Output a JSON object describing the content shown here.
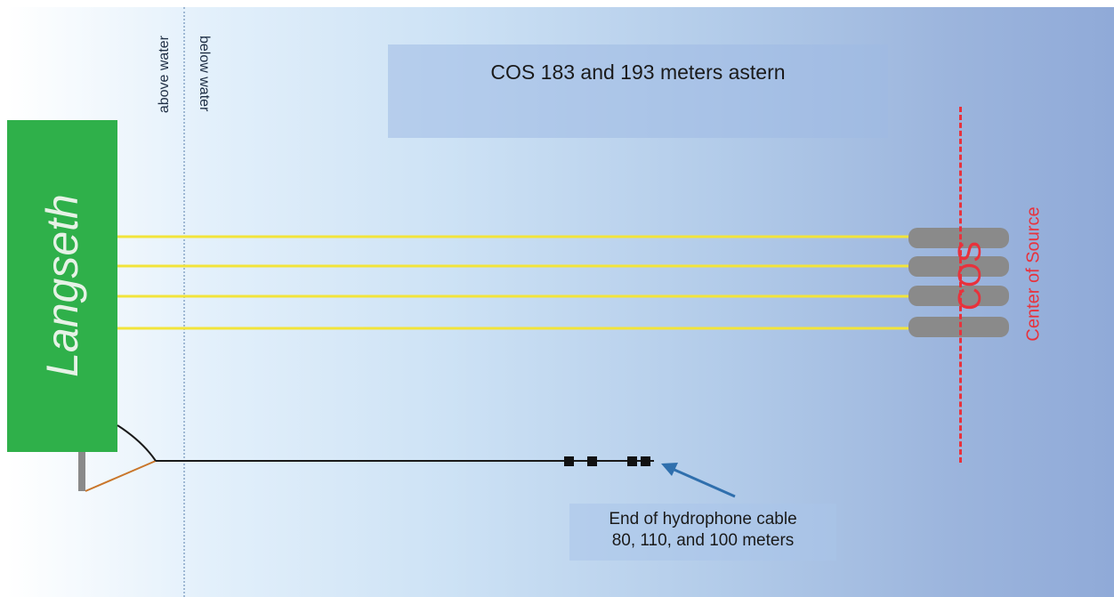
{
  "vessel": {
    "name": "Langseth"
  },
  "water": {
    "above_label": "above water",
    "below_label": "below water"
  },
  "title": {
    "text": "COS 183 and 193 meters astern"
  },
  "source": {
    "abbrev": "COS",
    "full": "Center of Source"
  },
  "hydrophone": {
    "line1": "End of hydrophone cable",
    "line2": "80, 110, and 100 meters"
  },
  "colors": {
    "ship": "#2fb04a",
    "tow_line": "#f2e43a",
    "gun": "#8a8a8a",
    "cos": "#e8323c",
    "arrow": "#2f6fad",
    "cable": "#1a1a1a"
  }
}
